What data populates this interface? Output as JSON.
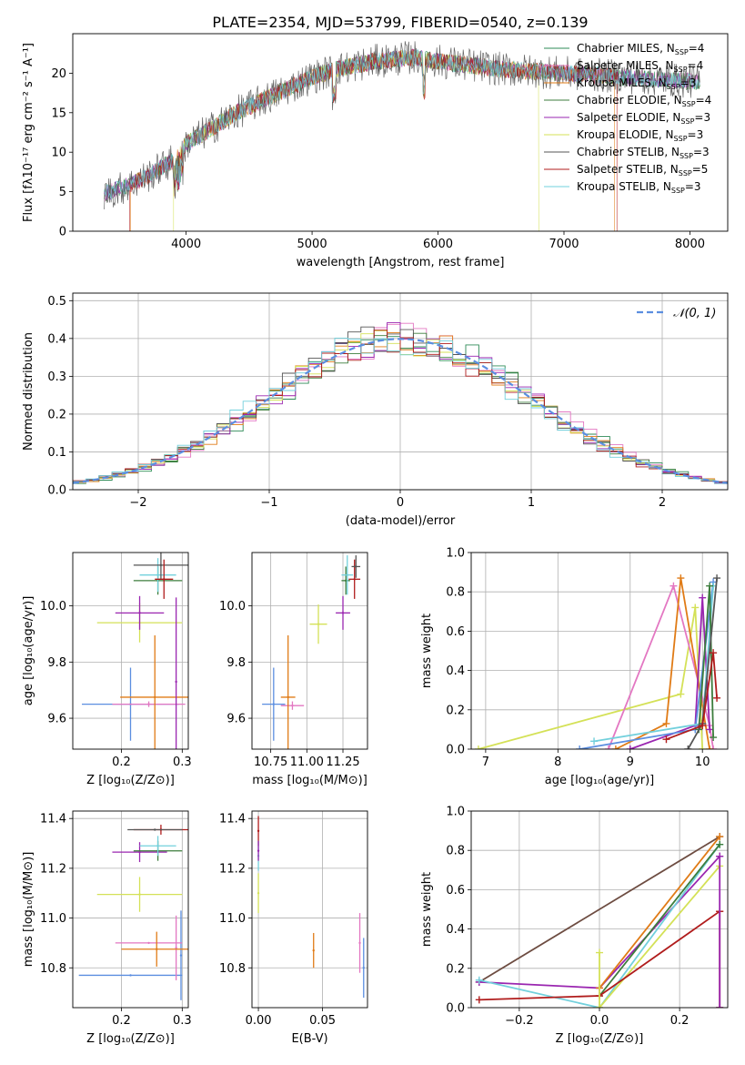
{
  "figure_title": "PLATE=2354, MJD=53799, FIBERID=0540, z=0.139",
  "colors": {
    "Chabrier MILES": "#2e8b57",
    "Salpeter MILES": "#e377c2",
    "Kroupa MILES": "#e07b16",
    "Chabrier ELODIE": "#3c7d3c",
    "Salpeter ELODIE": "#9a26b0",
    "Kroupa ELODIE": "#d4e157",
    "Chabrier STELIB": "#555555",
    "Salpeter STELIB": "#b01c1c",
    "Kroupa STELIB": "#72d0dc",
    "blue": "#5b8ee0",
    "brown": "#6d4c41"
  },
  "chart_data": [
    {
      "id": "spectrum",
      "type": "line",
      "title": "",
      "xlabel": "wavelength [Angstrom, rest frame]",
      "ylabel": "Flux [fλ10⁻¹⁷ erg cm⁻² s⁻¹ A⁻¹]",
      "xlim": [
        3100,
        8300
      ],
      "ylim": [
        0,
        25
      ],
      "xticks": [
        4000,
        5000,
        6000,
        7000,
        8000
      ],
      "yticks": [
        0,
        5,
        10,
        15,
        20
      ],
      "grid": false,
      "legend_position": "right",
      "continuum": [
        [
          3350,
          4.8
        ],
        [
          3500,
          5.5
        ],
        [
          3700,
          7.0
        ],
        [
          3900,
          9.0
        ],
        [
          4000,
          11.0
        ],
        [
          4200,
          13.0
        ],
        [
          4400,
          15.0
        ],
        [
          4600,
          16.5
        ],
        [
          4800,
          18.0
        ],
        [
          5000,
          19.5
        ],
        [
          5200,
          20.5
        ],
        [
          5500,
          21.5
        ],
        [
          5800,
          22.0
        ],
        [
          6000,
          21.5
        ],
        [
          6500,
          20.5
        ],
        [
          7000,
          20.0
        ],
        [
          7500,
          19.5
        ],
        [
          8000,
          19.0
        ],
        [
          8080,
          18.8
        ]
      ],
      "legend": [
        {
          "label": "Chabrier MILES, N",
          "sub": "SSP",
          "suffix": "=4",
          "color": "#2e8b57"
        },
        {
          "label": "Salpeter MILES, N",
          "sub": "SSP",
          "suffix": "=4",
          "color": "#e377c2"
        },
        {
          "label": "Kroupa MILES, N",
          "sub": "SSP",
          "suffix": "=3",
          "color": "#e07b16"
        },
        {
          "label": "Chabrier ELODIE, N",
          "sub": "SSP",
          "suffix": "=4",
          "color": "#3c7d3c"
        },
        {
          "label": "Salpeter ELODIE, N",
          "sub": "SSP",
          "suffix": "=3",
          "color": "#9a26b0"
        },
        {
          "label": "Kroupa ELODIE, N",
          "sub": "SSP",
          "suffix": "=3",
          "color": "#d4e157"
        },
        {
          "label": "Chabrier STELIB, N",
          "sub": "SSP",
          "suffix": "=3",
          "color": "#555555"
        },
        {
          "label": "Salpeter STELIB, N",
          "sub": "SSP",
          "suffix": "=5",
          "color": "#b01c1c"
        },
        {
          "label": "Kroupa STELIB, N",
          "sub": "SSP",
          "suffix": "=3",
          "color": "#72d0dc"
        }
      ]
    },
    {
      "id": "residuals",
      "type": "line",
      "xlabel": "(data-model)/error",
      "ylabel": "Normed distribution",
      "xlim": [
        -2.5,
        2.5
      ],
      "ylim": [
        0,
        0.52
      ],
      "xticks": [
        -2,
        -1,
        0,
        1,
        2
      ],
      "yticks": [
        0.0,
        0.1,
        0.2,
        0.3,
        0.4,
        0.5
      ],
      "grid": true,
      "legend_position": "top-right",
      "legend": [
        {
          "label": "𝒩(0, 1)",
          "color": "#5b8ee0"
        }
      ],
      "gaussian": {
        "mean": 0,
        "sigma": 1
      }
    },
    {
      "id": "age_vs_Z",
      "type": "scatter",
      "xlabel": "Z [log₁₀(Z/Z⊙)]",
      "ylabel": "age  [log₁₀(age/yr)]",
      "xlim": [
        0.12,
        0.31
      ],
      "ylim": [
        9.49,
        10.19
      ],
      "xticks": [
        0.2,
        0.3
      ],
      "yticks": [
        9.6,
        9.8,
        10.0
      ],
      "grid": true,
      "points": [
        {
          "x": 0.215,
          "y": 9.65,
          "xerr": 0.08,
          "yerr": 0.13,
          "color": "#5b8ee0"
        },
        {
          "x": 0.245,
          "y": 9.65,
          "xerr": 0.06,
          "yerr": 0.01,
          "color": "#e377c2"
        },
        {
          "x": 0.255,
          "y": 9.675,
          "xerr": 0.057,
          "yerr": 0.22,
          "color": "#e07b16"
        },
        {
          "x": 0.23,
          "y": 9.94,
          "xerr": 0.07,
          "yerr": 0.07,
          "color": "#d4e157"
        },
        {
          "x": 0.23,
          "y": 9.975,
          "xerr": 0.04,
          "yerr": 0.06,
          "color": "#9a26b0"
        },
        {
          "x": 0.29,
          "y": 9.73,
          "xerr": 0.0,
          "yerr": 0.3,
          "color": "#9a26b0"
        },
        {
          "x": 0.26,
          "y": 10.09,
          "xerr": 0.04,
          "yerr": 0.05,
          "color": "#3c7d3c"
        },
        {
          "x": 0.26,
          "y": 10.11,
          "xerr": 0.03,
          "yerr": 0.06,
          "color": "#72d0dc"
        },
        {
          "x": 0.265,
          "y": 10.145,
          "xerr": 0.045,
          "yerr": 0.05,
          "color": "#555555"
        },
        {
          "x": 0.27,
          "y": 10.095,
          "xerr": 0.015,
          "yerr": 0.07,
          "color": "#b01c1c"
        }
      ]
    },
    {
      "id": "age_vs_mass",
      "type": "scatter",
      "xlabel": "mass [log₁₀(M/M⊙)]",
      "ylabel": "",
      "xlim": [
        10.62,
        11.42
      ],
      "ylim": [
        9.49,
        10.19
      ],
      "xticks": [
        10.75,
        11.0,
        11.25
      ],
      "yticks": [
        9.6,
        9.8,
        10.0
      ],
      "grid": true,
      "points": [
        {
          "x": 10.77,
          "y": 9.65,
          "xerr": 0.08,
          "yerr": 0.13,
          "color": "#5b8ee0"
        },
        {
          "x": 10.9,
          "y": 9.645,
          "xerr": 0.08,
          "yerr": 0.015,
          "color": "#e377c2"
        },
        {
          "x": 10.87,
          "y": 9.675,
          "xerr": 0.05,
          "yerr": 0.22,
          "color": "#e07b16"
        },
        {
          "x": 11.08,
          "y": 9.935,
          "xerr": 0.06,
          "yerr": 0.07,
          "color": "#d4e157"
        },
        {
          "x": 11.25,
          "y": 9.975,
          "xerr": 0.05,
          "yerr": 0.06,
          "color": "#9a26b0"
        },
        {
          "x": 11.27,
          "y": 10.09,
          "xerr": 0.03,
          "yerr": 0.05,
          "color": "#3c7d3c"
        },
        {
          "x": 11.28,
          "y": 10.11,
          "xerr": 0.04,
          "yerr": 0.07,
          "color": "#72d0dc"
        },
        {
          "x": 11.33,
          "y": 10.095,
          "xerr": 0.04,
          "yerr": 0.07,
          "color": "#b01c1c"
        },
        {
          "x": 11.34,
          "y": 10.14,
          "xerr": 0.03,
          "yerr": 0.04,
          "color": "#555555"
        }
      ]
    },
    {
      "id": "mass_weight_vs_age",
      "type": "line",
      "xlabel": "age  [log₁₀(age/yr)]",
      "ylabel": "mass weight",
      "xlim": [
        6.8,
        10.35
      ],
      "ylim": [
        0,
        1.0
      ],
      "xticks": [
        7,
        8,
        9,
        10
      ],
      "yticks": [
        0.0,
        0.2,
        0.4,
        0.6,
        0.8,
        1.0
      ],
      "grid": true,
      "series": [
        {
          "color": "#d4e157",
          "x": [
            6.9,
            9.7,
            9.9,
            10.0
          ],
          "y": [
            0.0,
            0.28,
            0.72,
            0.0
          ]
        },
        {
          "color": "#e377c2",
          "x": [
            8.7,
            9.6,
            10.1,
            10.15
          ],
          "y": [
            0.0,
            0.83,
            0.12,
            0.0
          ]
        },
        {
          "color": "#e07b16",
          "x": [
            8.8,
            9.5,
            9.7,
            10.1
          ],
          "y": [
            0.0,
            0.13,
            0.87,
            0.0
          ]
        },
        {
          "color": "#9a26b0",
          "x": [
            9.0,
            9.9,
            10.0,
            10.1
          ],
          "y": [
            0.0,
            0.12,
            0.77,
            0.1
          ]
        },
        {
          "color": "#5b8ee0",
          "x": [
            8.3,
            9.9,
            10.15
          ],
          "y": [
            0.0,
            0.1,
            0.85
          ]
        },
        {
          "color": "#72d0dc",
          "x": [
            8.5,
            10.0,
            10.15
          ],
          "y": [
            0.04,
            0.13,
            0.83
          ]
        },
        {
          "color": "#3c7d3c",
          "x": [
            9.95,
            10.1,
            10.15
          ],
          "y": [
            0.1,
            0.83,
            0.06
          ]
        },
        {
          "color": "#555555",
          "x": [
            9.8,
            10.0,
            10.2
          ],
          "y": [
            0.0,
            0.13,
            0.87
          ]
        },
        {
          "color": "#b01c1c",
          "x": [
            9.5,
            10.0,
            10.15,
            10.2
          ],
          "y": [
            0.05,
            0.12,
            0.49,
            0.26
          ]
        }
      ]
    },
    {
      "id": "mass_vs_Z",
      "type": "scatter",
      "xlabel": "Z [log₁₀(Z/Z⊙)]",
      "ylabel": "mass [log₁₀(M/M⊙)]",
      "xlim": [
        0.12,
        0.31
      ],
      "ylim": [
        10.64,
        11.43
      ],
      "xticks": [
        0.2,
        0.3
      ],
      "yticks": [
        10.8,
        11.0,
        11.2,
        11.4
      ],
      "grid": true,
      "points": [
        {
          "x": 0.215,
          "y": 10.77,
          "xerr": 0.085,
          "yerr": 0.0,
          "color": "#5b8ee0"
        },
        {
          "x": 0.298,
          "y": 10.85,
          "xerr": 0.0,
          "yerr": 0.18,
          "color": "#5b8ee0"
        },
        {
          "x": 0.245,
          "y": 10.9,
          "xerr": 0.055,
          "yerr": 0.0,
          "color": "#e377c2"
        },
        {
          "x": 0.29,
          "y": 10.88,
          "xerr": 0.0,
          "yerr": 0.13,
          "color": "#e377c2"
        },
        {
          "x": 0.258,
          "y": 10.875,
          "xerr": 0.058,
          "yerr": 0.07,
          "color": "#e07b16"
        },
        {
          "x": 0.23,
          "y": 11.095,
          "xerr": 0.07,
          "yerr": 0.07,
          "color": "#d4e157"
        },
        {
          "x": 0.23,
          "y": 11.265,
          "xerr": 0.045,
          "yerr": 0.04,
          "color": "#9a26b0"
        },
        {
          "x": 0.26,
          "y": 11.27,
          "xerr": 0.04,
          "yerr": 0.04,
          "color": "#3c7d3c"
        },
        {
          "x": 0.26,
          "y": 11.29,
          "xerr": 0.03,
          "yerr": 0.04,
          "color": "#72d0dc"
        },
        {
          "x": 0.265,
          "y": 11.355,
          "xerr": 0.045,
          "yerr": 0.02,
          "color": "#b01c1c"
        },
        {
          "x": 0.255,
          "y": 11.355,
          "xerr": 0.045,
          "yerr": 0.0,
          "color": "#555555"
        }
      ]
    },
    {
      "id": "mass_vs_ebv",
      "type": "scatter",
      "xlabel": "E(B-V)",
      "ylabel": "",
      "xlim": [
        -0.005,
        0.085
      ],
      "ylim": [
        10.64,
        11.43
      ],
      "xticks": [
        0.0,
        0.05
      ],
      "yticks": [
        10.8,
        11.0,
        11.2,
        11.4
      ],
      "grid": true,
      "points": [
        {
          "x": 0.0,
          "y": 11.35,
          "xerr": 0.0,
          "yerr": 0.06,
          "color": "#b01c1c"
        },
        {
          "x": 0.0,
          "y": 11.25,
          "xerr": 0.0,
          "yerr": 0.06,
          "color": "#72d0dc"
        },
        {
          "x": 0.0,
          "y": 11.1,
          "xerr": 0.0,
          "yerr": 0.08,
          "color": "#d4e157"
        },
        {
          "x": 0.0,
          "y": 11.27,
          "xerr": 0.0,
          "yerr": 0.04,
          "color": "#9a26b0"
        },
        {
          "x": 0.043,
          "y": 10.87,
          "xerr": 0.0,
          "yerr": 0.07,
          "color": "#e07b16"
        },
        {
          "x": 0.079,
          "y": 10.9,
          "xerr": 0.0,
          "yerr": 0.12,
          "color": "#e377c2"
        },
        {
          "x": 0.082,
          "y": 10.8,
          "xerr": 0.0,
          "yerr": 0.12,
          "color": "#5b8ee0"
        }
      ]
    },
    {
      "id": "mass_weight_vs_Z",
      "type": "line",
      "xlabel": "Z [log₁₀(Z/Z⊙)]",
      "ylabel": "mass weight",
      "xlim": [
        -0.32,
        0.32
      ],
      "ylim": [
        0,
        1.0
      ],
      "xticks": [
        -0.2,
        0.0,
        0.2
      ],
      "yticks": [
        0.0,
        0.2,
        0.4,
        0.6,
        0.8,
        1.0
      ],
      "grid": true,
      "series": [
        {
          "color": "#6d4c41",
          "x": [
            -0.3,
            0.3
          ],
          "y": [
            0.13,
            0.87
          ]
        },
        {
          "color": "#9a26b0",
          "x": [
            -0.3,
            0.0,
            0.3
          ],
          "y": [
            0.13,
            0.1,
            0.77
          ]
        },
        {
          "color": "#72d0dc",
          "x": [
            -0.3,
            0.0,
            0.3
          ],
          "y": [
            0.14,
            0.0,
            0.83
          ]
        },
        {
          "color": "#3c7d3c",
          "x": [
            0.0,
            0.3
          ],
          "y": [
            0.06,
            0.83
          ]
        },
        {
          "color": "#d4e157",
          "x": [
            0.0,
            0.3
          ],
          "y": [
            0.0,
            0.72
          ]
        },
        {
          "color": "#b01c1c",
          "x": [
            -0.3,
            0.0,
            0.3
          ],
          "y": [
            0.04,
            0.06,
            0.49
          ]
        },
        {
          "color": "#e07b16",
          "x": [
            0.0,
            0.3
          ],
          "y": [
            0.1,
            0.87
          ]
        },
        {
          "color": "#d4e157",
          "x": [
            0.0,
            0.0
          ],
          "y": [
            0.0,
            0.28
          ]
        },
        {
          "color": "#b01c1c",
          "x": [
            0.3,
            0.3
          ],
          "y": [
            0.0,
            0.49
          ]
        },
        {
          "color": "#9a26b0",
          "x": [
            0.3,
            0.3
          ],
          "y": [
            0.0,
            0.77
          ]
        }
      ]
    }
  ]
}
